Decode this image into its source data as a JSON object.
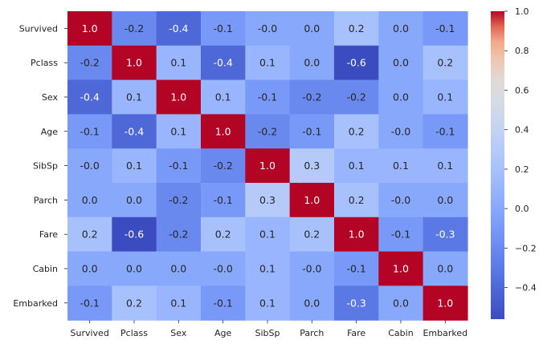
{
  "chart_data": {
    "type": "heatmap",
    "title": "",
    "xlabel": "",
    "ylabel": "",
    "x": [
      "Survived",
      "Pclass",
      "Sex",
      "Age",
      "SibSp",
      "Parch",
      "Fare",
      "Cabin",
      "Embarked"
    ],
    "y": [
      "Survived",
      "Pclass",
      "Sex",
      "Age",
      "SibSp",
      "Parch",
      "Fare",
      "Cabin",
      "Embarked"
    ],
    "values": [
      [
        1.0,
        -0.2,
        -0.4,
        -0.1,
        -0.0,
        0.0,
        0.2,
        0.0,
        -0.1
      ],
      [
        -0.2,
        1.0,
        0.1,
        -0.4,
        0.1,
        0.0,
        -0.6,
        0.0,
        0.2
      ],
      [
        -0.4,
        0.1,
        1.0,
        0.1,
        -0.1,
        -0.2,
        -0.2,
        0.0,
        0.1
      ],
      [
        -0.1,
        -0.4,
        0.1,
        1.0,
        -0.2,
        -0.1,
        0.2,
        -0.0,
        -0.1
      ],
      [
        -0.0,
        0.1,
        -0.1,
        -0.2,
        1.0,
        0.3,
        0.1,
        0.1,
        0.1
      ],
      [
        0.0,
        0.0,
        -0.2,
        -0.1,
        0.3,
        1.0,
        0.2,
        -0.0,
        0.0
      ],
      [
        0.2,
        -0.6,
        -0.2,
        0.2,
        0.1,
        0.2,
        1.0,
        -0.1,
        -0.3
      ],
      [
        0.0,
        0.0,
        0.0,
        -0.0,
        0.1,
        -0.0,
        -0.1,
        1.0,
        0.0
      ],
      [
        -0.1,
        0.2,
        0.1,
        -0.1,
        0.1,
        0.0,
        -0.3,
        0.0,
        1.0
      ]
    ],
    "value_labels": [
      [
        "1.0",
        "-0.2",
        "-0.4",
        "-0.1",
        "-0.0",
        "0.0",
        "0.2",
        "0.0",
        "-0.1"
      ],
      [
        "-0.2",
        "1.0",
        "0.1",
        "-0.4",
        "0.1",
        "0.0",
        "-0.6",
        "0.0",
        "0.2"
      ],
      [
        "-0.4",
        "0.1",
        "1.0",
        "0.1",
        "-0.1",
        "-0.2",
        "-0.2",
        "0.0",
        "0.1"
      ],
      [
        "-0.1",
        "-0.4",
        "0.1",
        "1.0",
        "-0.2",
        "-0.1",
        "0.2",
        "-0.0",
        "-0.1"
      ],
      [
        "-0.0",
        "0.1",
        "-0.1",
        "-0.2",
        "1.0",
        "0.3",
        "0.1",
        "0.1",
        "0.1"
      ],
      [
        "0.0",
        "0.0",
        "-0.2",
        "-0.1",
        "0.3",
        "1.0",
        "0.2",
        "-0.0",
        "0.0"
      ],
      [
        "0.2",
        "-0.6",
        "-0.2",
        "0.2",
        "0.1",
        "0.2",
        "1.0",
        "-0.1",
        "-0.3"
      ],
      [
        "0.0",
        "0.0",
        "0.0",
        "-0.0",
        "0.1",
        "-0.0",
        "-0.1",
        "1.0",
        "0.0"
      ],
      [
        "-0.1",
        "0.2",
        "0.1",
        "-0.1",
        "0.1",
        "0.0",
        "-0.3",
        "0.0",
        "1.0"
      ]
    ],
    "colormap": "coolwarm",
    "vmin": -0.56,
    "vmax": 1.0,
    "colorbar_ticks": [
      1.0,
      0.8,
      0.6,
      0.4,
      0.2,
      0.0,
      -0.2,
      -0.4
    ],
    "colorbar_tick_labels": [
      "1.0",
      "0.8",
      "0.6",
      "0.4",
      "0.2",
      "0.0",
      "−0.2",
      "−0.4"
    ],
    "colorbar_position": "right",
    "grid": false
  }
}
